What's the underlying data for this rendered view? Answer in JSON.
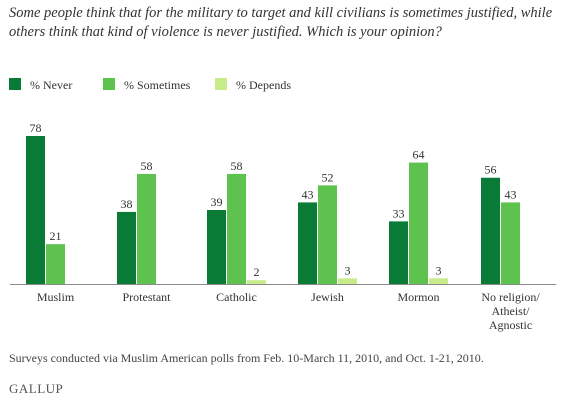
{
  "title": "Some people think that for the military to target and kill civilians is sometimes justified, while others think that kind of violence is never justified. Which is your opinion?",
  "legend": [
    {
      "label": "% Never",
      "color": "#0a7a37"
    },
    {
      "label": "% Sometimes",
      "color": "#5ec24f"
    },
    {
      "label": "% Depends",
      "color": "#c9ec8a"
    }
  ],
  "chart_data": {
    "type": "bar",
    "categories": [
      [
        "Muslim"
      ],
      [
        "Protestant"
      ],
      [
        "Catholic"
      ],
      [
        "Jewish"
      ],
      [
        "Mormon"
      ],
      [
        "No religion/",
        "Atheist/",
        "Agnostic"
      ]
    ],
    "series": [
      {
        "name": "% Never",
        "color": "#0a7a37",
        "values": [
          78,
          38,
          39,
          43,
          33,
          56
        ]
      },
      {
        "name": "% Sometimes",
        "color": "#5ec24f",
        "values": [
          21,
          58,
          58,
          52,
          64,
          43
        ]
      },
      {
        "name": "% Depends",
        "color": "#c9ec8a",
        "values": [
          null,
          null,
          2,
          3,
          3,
          null
        ]
      }
    ],
    "ylim": [
      0,
      78
    ],
    "grid": false,
    "legend_position": "top-left"
  },
  "footnote": "Surveys conducted via Muslim American polls from Feb. 10-March 11, 2010, and Oct. 1-21, 2010.",
  "brand": "GALLUP"
}
